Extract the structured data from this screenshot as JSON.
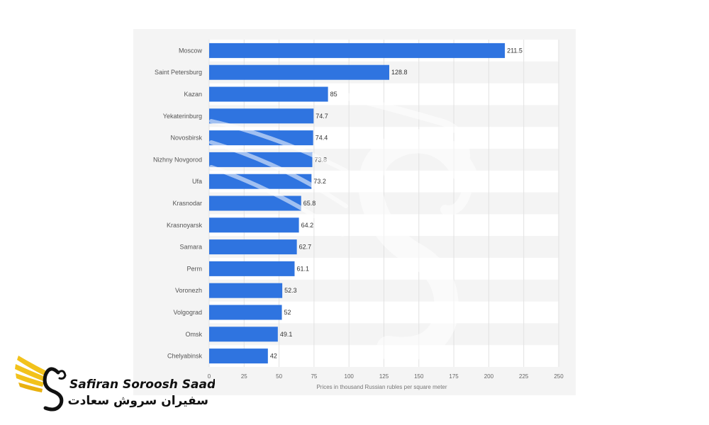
{
  "chart_data": {
    "type": "bar",
    "orientation": "horizontal",
    "categories": [
      "Moscow",
      "Saint Petersburg",
      "Kazan",
      "Yekaterinburg",
      "Novosbirsk",
      "Nizhny Novgorod",
      "Ufa",
      "Krasnodar",
      "Krasnoyarsk",
      "Samara",
      "Perm",
      "Voronezh",
      "Volgograd",
      "Omsk",
      "Chelyabinsk"
    ],
    "values": [
      211.5,
      128.8,
      85,
      74.7,
      74.4,
      73.8,
      73.2,
      65.8,
      64.2,
      62.7,
      61.1,
      52.3,
      52,
      49.1,
      42
    ],
    "value_labels": [
      "211.5",
      "128.8",
      "85",
      "74.7",
      "74.4",
      "73.8",
      "73.2",
      "65.8",
      "64.2",
      "62.7",
      "61.1",
      "52.3",
      "52",
      "49.1",
      "42"
    ],
    "xlabel": "Prices in thousand Russian rubles per square meter",
    "ylabel": "",
    "xlim": [
      0,
      250
    ],
    "xticks": [
      0,
      25,
      50,
      75,
      100,
      125,
      150,
      175,
      200,
      225,
      250
    ],
    "grid": true,
    "bar_color": "#2f74e0",
    "band_colors": [
      "#ffffff",
      "#f4f4f4"
    ]
  },
  "watermark": {
    "brand_en": "Safiran Soroosh Saadat",
    "brand_fa": "سفیران سروش سعادت",
    "accent_color": "#f2c21b",
    "ink_color": "#111111"
  }
}
